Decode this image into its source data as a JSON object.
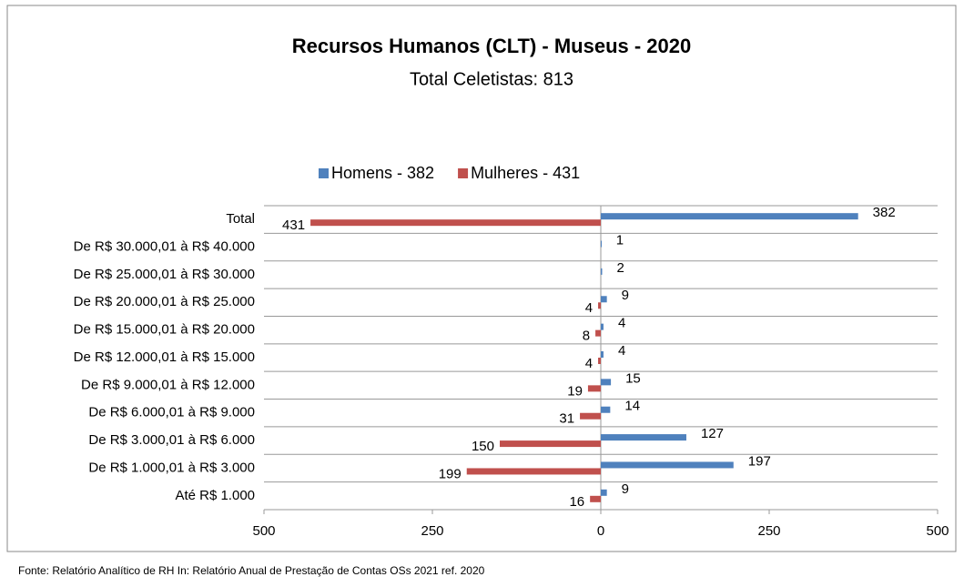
{
  "chart_data": {
    "type": "bar",
    "orientation": "horizontal",
    "title": "Recursos Humanos (CLT) - Museus - 2020",
    "subtitle": "Total Celetistas: 813",
    "categories": [
      "Total",
      "De R$ 30.000,01 à R$ 40.000",
      "De R$ 25.000,01 à R$ 30.000",
      "De R$ 20.000,01 à R$ 25.000",
      "De R$ 15.000,01 à R$ 20.000",
      "De R$ 12.000,01 à R$ 15.000",
      "De R$ 9.000,01 à R$ 12.000",
      "De R$ 6.000,01 à R$ 9.000",
      "De R$ 3.000,01 à R$ 6.000",
      "De R$ 1.000,01 à R$ 3.000",
      "Até R$ 1.000"
    ],
    "series": [
      {
        "name": "Homens - 382",
        "color": "#4f81bd",
        "values": [
          382,
          1,
          2,
          9,
          4,
          4,
          15,
          14,
          127,
          197,
          9
        ]
      },
      {
        "name": "Mulheres - 431",
        "color": "#c0504d",
        "values": [
          -431,
          null,
          null,
          -4,
          -8,
          -4,
          -19,
          -31,
          -150,
          -199,
          -16
        ],
        "value_labels": [
          "431",
          null,
          null,
          "4",
          "8",
          "4",
          "19",
          "31",
          "150",
          "199",
          "16"
        ]
      }
    ],
    "xlim": [
      -500,
      500
    ],
    "xticks": [
      {
        "value": -500,
        "label": "500"
      },
      {
        "value": -250,
        "label": "250"
      },
      0,
      250,
      500
    ],
    "legend": "top",
    "source": "Fonte: Relatório Analítico de RH In: Relatório Anual de Prestação de Contas OSs 2021 ref. 2020"
  }
}
